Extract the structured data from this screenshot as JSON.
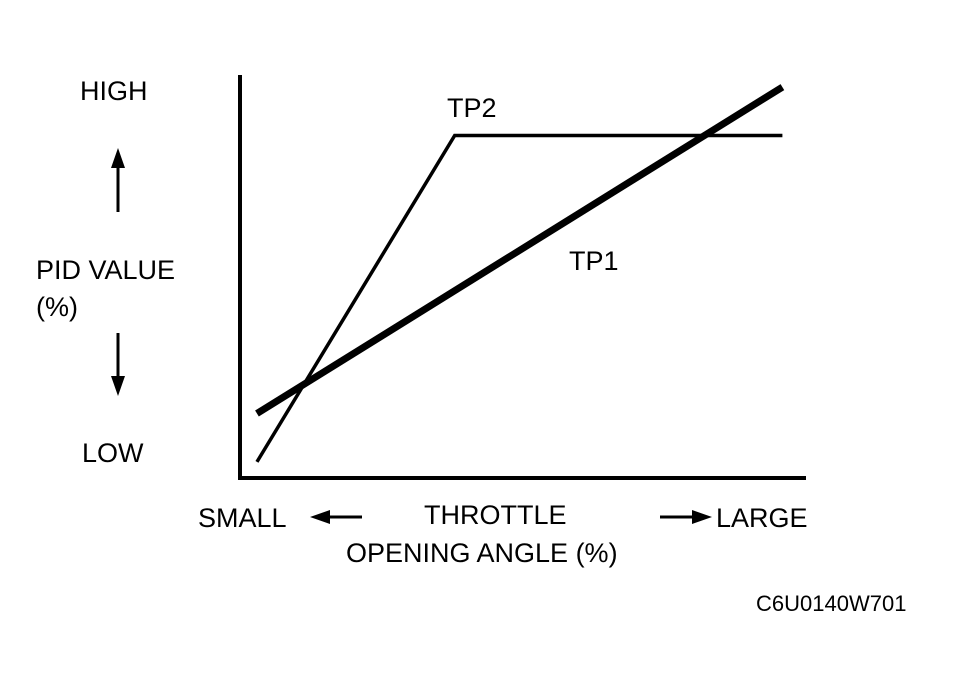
{
  "chart_data": {
    "type": "line",
    "title": "",
    "ylabel": {
      "top": "HIGH",
      "middle": "PID VALUE",
      "unit": "(%)",
      "bottom": "LOW"
    },
    "xlabel": {
      "left": "SMALL",
      "middle_line1": "THROTTLE",
      "middle_line2": "OPENING ANGLE (%)",
      "right": "LARGE"
    },
    "xlim": [
      0,
      100
    ],
    "ylim": [
      0,
      100
    ],
    "grid": false,
    "series": [
      {
        "name": "TP1",
        "x": [
          3,
          96
        ],
        "y": [
          16,
          97
        ],
        "color": "#000000"
      },
      {
        "name": "TP2",
        "x": [
          3,
          38,
          96
        ],
        "y": [
          4,
          85,
          85
        ],
        "color": "#000000"
      }
    ]
  },
  "figure_code": "C6U0140W701"
}
